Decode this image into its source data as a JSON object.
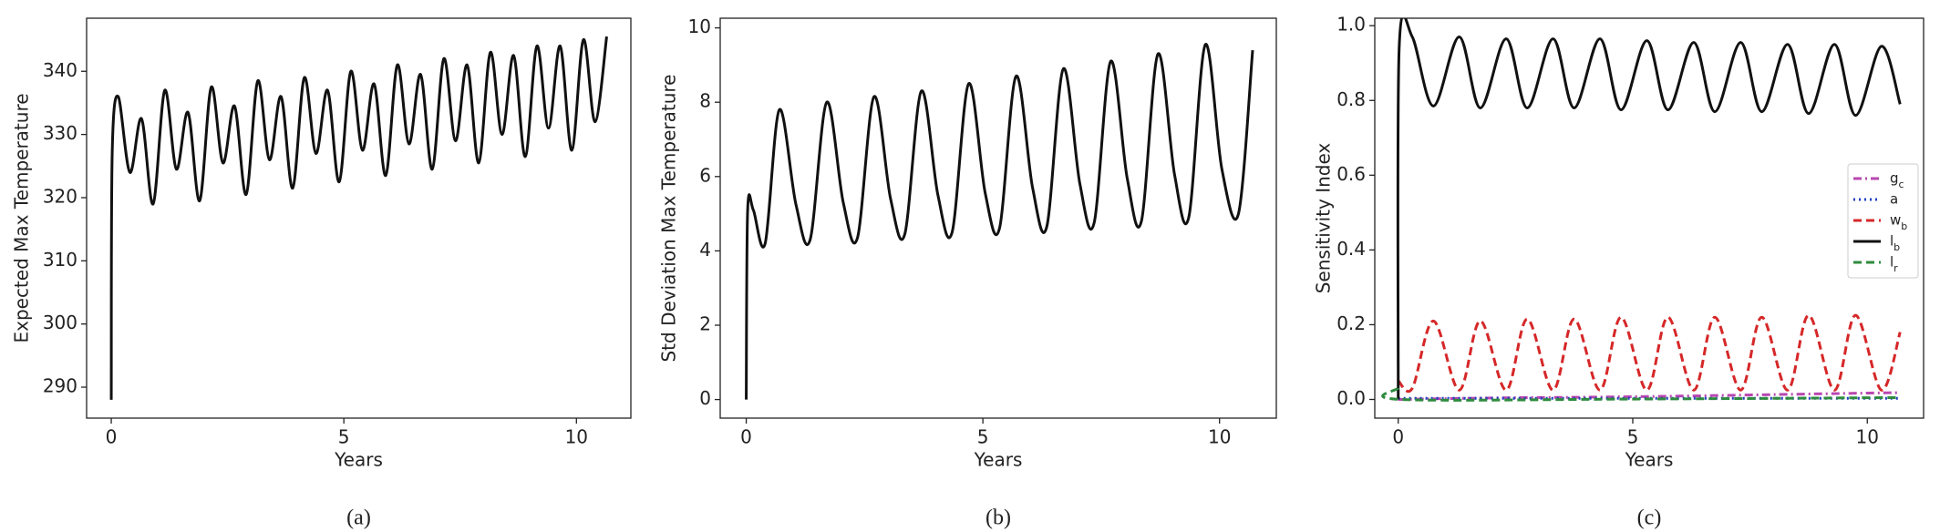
{
  "chart_data": [
    {
      "type": "line",
      "caption": "(a)",
      "xlabel": "Years",
      "ylabel": "Expected Max Temperature",
      "xlim": [
        -0.53,
        11.17
      ],
      "xticks": [
        0,
        5,
        10
      ],
      "ylim": [
        285.1,
        348.4
      ],
      "yticks": [
        290,
        300,
        310,
        320,
        330,
        340
      ],
      "series": [
        {
          "color": "#111111",
          "dash": "solid",
          "x": [
            0,
            0.02,
            0.15,
            0.4,
            0.65,
            0.9,
            1.15,
            1.4,
            1.65,
            1.9,
            2.15,
            2.4,
            2.65,
            2.9,
            3.15,
            3.4,
            3.65,
            3.9,
            4.15,
            4.4,
            4.65,
            4.9,
            5.15,
            5.4,
            5.65,
            5.9,
            6.15,
            6.4,
            6.65,
            6.9,
            7.15,
            7.4,
            7.65,
            7.9,
            8.15,
            8.4,
            8.65,
            8.9,
            9.15,
            9.4,
            9.65,
            9.9,
            10.15,
            10.4,
            10.65
          ],
          "values": [
            288,
            327,
            336,
            324,
            332.5,
            319,
            337,
            324.5,
            333.5,
            319.5,
            337.5,
            325.5,
            334.5,
            320.5,
            338.5,
            326,
            336,
            321.5,
            339,
            327,
            337,
            322.5,
            340,
            327.5,
            338,
            323.5,
            341,
            328.5,
            339.5,
            324.5,
            342,
            329,
            341,
            325.5,
            343,
            330,
            342.5,
            326.5,
            344,
            331,
            344,
            327.5,
            345,
            332,
            345.5
          ]
        }
      ]
    },
    {
      "type": "line",
      "caption": "(b)",
      "xlabel": "Years",
      "ylabel": "Std Deviation Max Temperature",
      "xlim": [
        -0.55,
        11.2
      ],
      "xticks": [
        0,
        5,
        10
      ],
      "ylim": [
        -0.5,
        10.26
      ],
      "yticks": [
        0,
        2,
        4,
        6,
        8,
        10
      ],
      "series": [
        {
          "color": "#111111",
          "dash": "solid",
          "x": [
            0,
            0.03,
            0.15,
            0.4,
            0.7,
            1.05,
            1.35,
            1.7,
            2.05,
            2.35,
            2.7,
            3.05,
            3.35,
            3.7,
            4.05,
            4.35,
            4.7,
            5.05,
            5.35,
            5.7,
            6.05,
            6.35,
            6.7,
            7.05,
            7.35,
            7.7,
            8.05,
            8.35,
            8.7,
            9.05,
            9.35,
            9.7,
            10.05,
            10.4,
            10.7
          ],
          "values": [
            0,
            5.1,
            5.1,
            4.2,
            7.8,
            5.25,
            4.3,
            8.0,
            5.3,
            4.35,
            8.15,
            5.4,
            4.45,
            8.3,
            5.5,
            4.5,
            8.5,
            5.55,
            4.6,
            8.7,
            5.7,
            4.65,
            8.9,
            5.8,
            4.75,
            9.1,
            5.95,
            4.8,
            9.3,
            6.05,
            4.9,
            9.55,
            6.2,
            5.0,
            9.4
          ]
        }
      ]
    },
    {
      "type": "line",
      "caption": "(c)",
      "xlabel": "Years",
      "ylabel": "Sensitivity Index",
      "xlim": [
        -0.5,
        11.2
      ],
      "xticks": [
        0,
        5,
        10
      ],
      "ylim": [
        -0.05,
        1.02
      ],
      "yticks": [
        {
          "value": 0,
          "label": "0.0"
        },
        0.2,
        0.4,
        0.6,
        0.8,
        {
          "value": 1,
          "label": "1.0"
        }
      ],
      "legend": "right",
      "series": [
        {
          "name": "g_c",
          "color": "#b847b0",
          "dash": "dashdot",
          "x": [
            0,
            2,
            4,
            6,
            8,
            10,
            10.7
          ],
          "values": [
            0.0,
            0.004,
            0.006,
            0.009,
            0.013,
            0.017,
            0.018
          ]
        },
        {
          "name": "a",
          "color": "#1f3fbf",
          "dash": "dotted",
          "x": [
            0,
            10.7
          ],
          "values": [
            0.003,
            0.003
          ]
        },
        {
          "name": "w_b",
          "color": "#d62728",
          "dash": "dashed",
          "x": [
            0,
            0.3,
            0.75,
            1.3,
            1.75,
            2.3,
            2.75,
            3.3,
            3.75,
            4.3,
            4.75,
            5.3,
            5.75,
            6.3,
            6.75,
            7.3,
            7.75,
            8.3,
            8.75,
            9.3,
            9.75,
            10.3,
            10.7
          ],
          "values": [
            0.05,
            0.03,
            0.21,
            0.025,
            0.21,
            0.025,
            0.215,
            0.025,
            0.215,
            0.025,
            0.22,
            0.025,
            0.22,
            0.025,
            0.22,
            0.025,
            0.22,
            0.025,
            0.225,
            0.025,
            0.225,
            0.025,
            0.18
          ]
        },
        {
          "name": "l_b",
          "color": "#111111",
          "dash": "solid",
          "x": [
            0,
            0.02,
            0.3,
            0.75,
            1.3,
            1.75,
            2.3,
            2.75,
            3.3,
            3.75,
            4.3,
            4.75,
            5.3,
            5.75,
            6.3,
            6.75,
            7.3,
            7.75,
            8.3,
            8.75,
            9.3,
            9.75,
            10.3,
            10.7
          ],
          "values": [
            0,
            0.94,
            0.97,
            0.785,
            0.97,
            0.78,
            0.965,
            0.78,
            0.965,
            0.78,
            0.965,
            0.775,
            0.96,
            0.775,
            0.955,
            0.77,
            0.955,
            0.77,
            0.95,
            0.765,
            0.95,
            0.76,
            0.945,
            0.79
          ]
        },
        {
          "name": "l_r",
          "color": "#2e8b3e",
          "dash": "dashed",
          "x": [
            0,
            0.05,
            5,
            10.7
          ],
          "values": [
            0.03,
            0.0,
            0.001,
            0.005
          ]
        }
      ]
    }
  ]
}
